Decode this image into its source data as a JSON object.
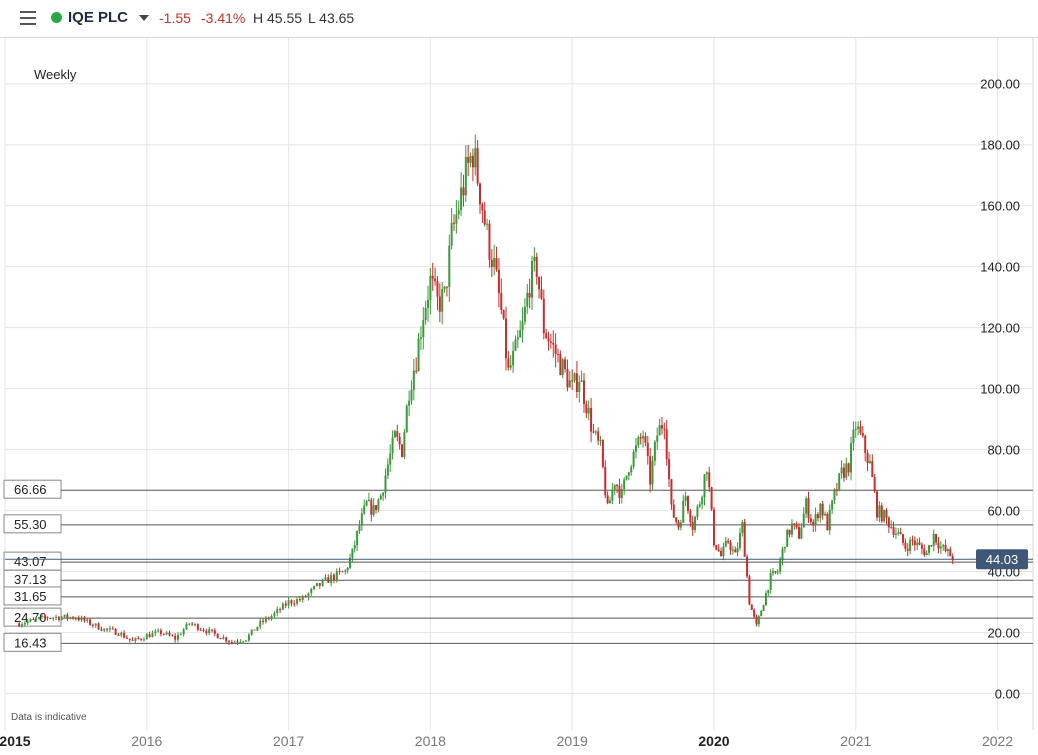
{
  "header": {
    "menu_icon": "hamburger-icon",
    "status_color": "#2aa745",
    "symbol": "IQE PLC",
    "change": "-1.55",
    "change_pct": "-3.41%",
    "high": "H 45.55",
    "low": "L 43.65",
    "negative_color": "#c8322b"
  },
  "labels": {
    "interval": "Weekly",
    "disclaimer": "Data is indicative"
  },
  "colors": {
    "up": "#3a9a3a",
    "down": "#cc2b2b",
    "grid": "#e6e6e6",
    "last_bg": "#3f5877"
  },
  "chart_data": {
    "type": "candlestick",
    "ylim": [
      -12,
      215
    ],
    "yticks": [
      "0.00",
      "20.00",
      "40.00",
      "60.00",
      "80.00",
      "100.00",
      "120.00",
      "140.00",
      "160.00",
      "180.00",
      "200.00"
    ],
    "yticks_values": [
      0,
      20,
      40,
      60,
      80,
      100,
      120,
      140,
      160,
      180,
      200
    ],
    "xlim": [
      2015.0,
      2022.25
    ],
    "xticks": [
      "2015",
      "2016",
      "2017",
      "2018",
      "2019",
      "2020",
      "2021",
      "2022"
    ],
    "xticks_values": [
      2015,
      2016,
      2017,
      2018,
      2019,
      2020,
      2021,
      2022
    ],
    "bold_xticks": [
      "2015",
      "2020"
    ],
    "levels": [
      {
        "label": "66.66",
        "value": 66.66
      },
      {
        "label": "55.30",
        "value": 55.3
      },
      {
        "label": "43.07",
        "value": 43.07
      },
      {
        "label": "37.13",
        "value": 37.13
      },
      {
        "label": "31.65",
        "value": 31.65
      },
      {
        "label": "24.70",
        "value": 24.7
      },
      {
        "label": "16.43",
        "value": 16.43
      }
    ],
    "last_price": {
      "label": "44.03",
      "value": 44.03
    },
    "series": [
      {
        "values": [
          [
            2015.1,
            23
          ],
          [
            2015.2,
            24
          ],
          [
            2015.3,
            25
          ],
          [
            2015.4,
            25
          ],
          [
            2015.5,
            25
          ],
          [
            2015.6,
            23
          ],
          [
            2015.7,
            21
          ],
          [
            2015.8,
            20
          ],
          [
            2015.9,
            17
          ],
          [
            2016.0,
            19
          ],
          [
            2016.1,
            20
          ],
          [
            2016.2,
            18
          ],
          [
            2016.3,
            23
          ],
          [
            2016.4,
            21
          ],
          [
            2016.5,
            19
          ],
          [
            2016.6,
            17
          ],
          [
            2016.7,
            18
          ],
          [
            2016.8,
            23
          ],
          [
            2016.9,
            26
          ],
          [
            2017.0,
            30
          ],
          [
            2017.1,
            31
          ],
          [
            2017.2,
            35
          ],
          [
            2017.3,
            38
          ],
          [
            2017.4,
            40
          ],
          [
            2017.45,
            46
          ],
          [
            2017.5,
            55
          ],
          [
            2017.55,
            62
          ],
          [
            2017.6,
            60
          ],
          [
            2017.65,
            65
          ],
          [
            2017.7,
            75
          ],
          [
            2017.75,
            84
          ],
          [
            2017.8,
            80
          ],
          [
            2017.85,
            100
          ],
          [
            2017.9,
            110
          ],
          [
            2017.95,
            125
          ],
          [
            2018.0,
            135
          ],
          [
            2018.05,
            128
          ],
          [
            2018.1,
            130
          ],
          [
            2018.15,
            150
          ],
          [
            2018.2,
            160
          ],
          [
            2018.25,
            170
          ],
          [
            2018.3,
            178
          ],
          [
            2018.35,
            165
          ],
          [
            2018.4,
            150
          ],
          [
            2018.45,
            140
          ],
          [
            2018.5,
            125
          ],
          [
            2018.55,
            105
          ],
          [
            2018.6,
            112
          ],
          [
            2018.65,
            120
          ],
          [
            2018.7,
            135
          ],
          [
            2018.75,
            140
          ],
          [
            2018.8,
            120
          ],
          [
            2018.85,
            115
          ],
          [
            2018.9,
            110
          ],
          [
            2018.95,
            105
          ],
          [
            2019.0,
            100
          ],
          [
            2019.05,
            104
          ],
          [
            2019.1,
            95
          ],
          [
            2019.15,
            85
          ],
          [
            2019.2,
            80
          ],
          [
            2019.25,
            60
          ],
          [
            2019.3,
            70
          ],
          [
            2019.35,
            65
          ],
          [
            2019.4,
            75
          ],
          [
            2019.45,
            80
          ],
          [
            2019.5,
            85
          ],
          [
            2019.55,
            70
          ],
          [
            2019.6,
            85
          ],
          [
            2019.65,
            90
          ],
          [
            2019.7,
            60
          ],
          [
            2019.75,
            55
          ],
          [
            2019.8,
            65
          ],
          [
            2019.85,
            55
          ],
          [
            2019.9,
            63
          ],
          [
            2019.95,
            75
          ],
          [
            2020.0,
            50
          ],
          [
            2020.05,
            45
          ],
          [
            2020.1,
            50
          ],
          [
            2020.15,
            45
          ],
          [
            2020.2,
            55
          ],
          [
            2020.25,
            30
          ],
          [
            2020.3,
            22
          ],
          [
            2020.35,
            30
          ],
          [
            2020.4,
            38
          ],
          [
            2020.45,
            40
          ],
          [
            2020.5,
            50
          ],
          [
            2020.55,
            55
          ],
          [
            2020.6,
            52
          ],
          [
            2020.65,
            62
          ],
          [
            2020.7,
            55
          ],
          [
            2020.75,
            62
          ],
          [
            2020.8,
            55
          ],
          [
            2020.85,
            65
          ],
          [
            2020.9,
            72
          ],
          [
            2020.95,
            75
          ],
          [
            2021.0,
            88
          ],
          [
            2021.05,
            82
          ],
          [
            2021.1,
            75
          ],
          [
            2021.15,
            60
          ],
          [
            2021.2,
            58
          ],
          [
            2021.25,
            55
          ],
          [
            2021.3,
            52
          ],
          [
            2021.35,
            48
          ],
          [
            2021.4,
            50
          ],
          [
            2021.45,
            48
          ],
          [
            2021.5,
            46
          ],
          [
            2021.55,
            52
          ],
          [
            2021.6,
            48
          ],
          [
            2021.65,
            46
          ],
          [
            2021.7,
            44
          ]
        ]
      }
    ]
  }
}
